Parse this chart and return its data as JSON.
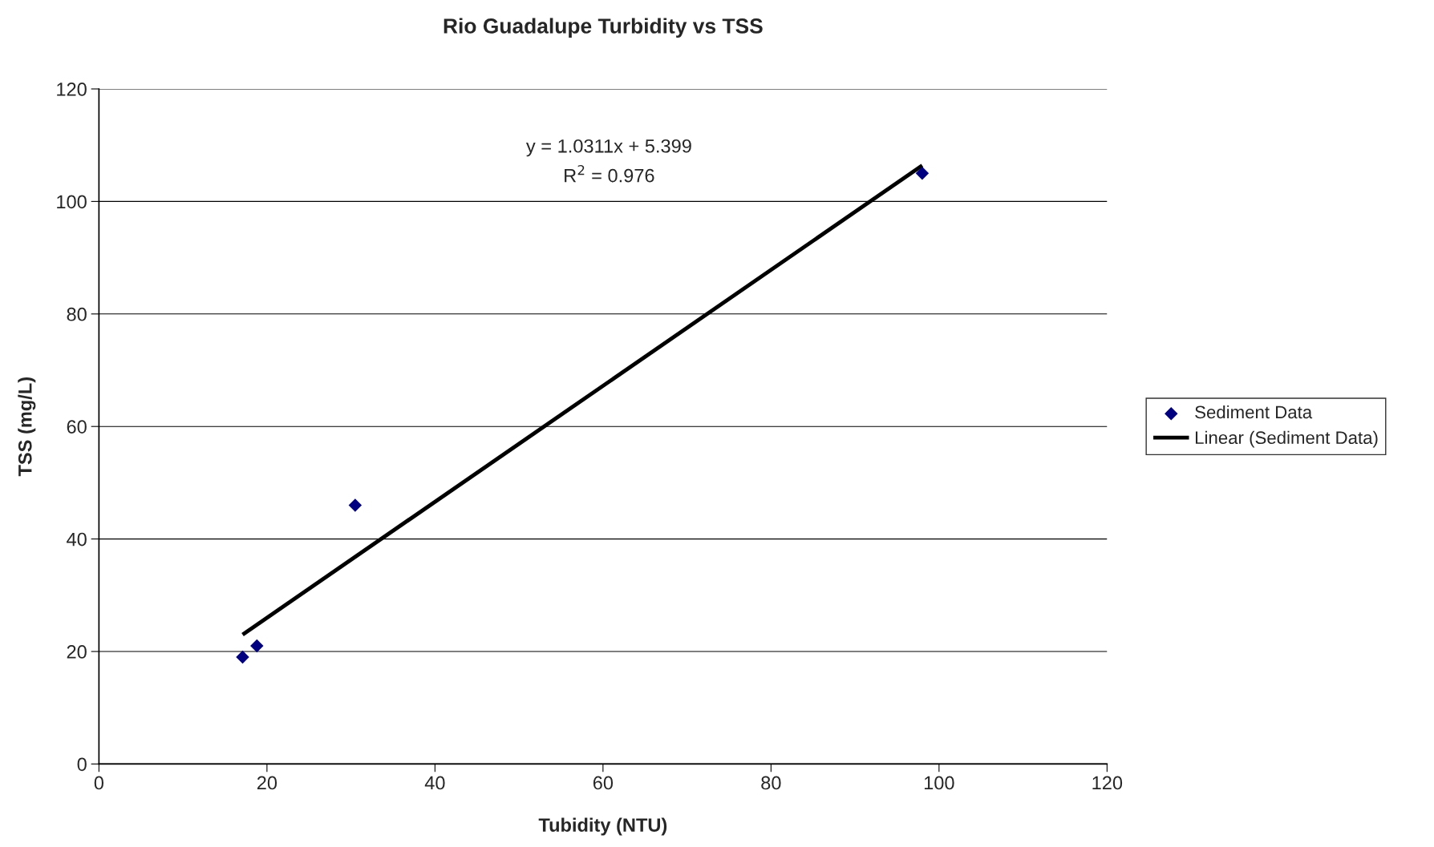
{
  "chart_data": {
    "type": "scatter",
    "title": "Rio Guadalupe Turbidity vs TSS",
    "xlabel": "Tubidity (NTU)",
    "ylabel": "TSS (mg/L)",
    "series": [
      {
        "name": "Sediment Data",
        "color": "#000080",
        "marker": "diamond",
        "x": [
          17.1,
          18.8,
          30.5,
          98
        ],
        "values": [
          19,
          21,
          46,
          105
        ]
      },
      {
        "name": "Linear (Sediment Data)",
        "type": "line",
        "color": "#000000",
        "line_style": "solid",
        "x": [
          17.1,
          98
        ],
        "values": [
          23.0,
          106.4
        ]
      }
    ],
    "annotations": [
      "y = 1.0311x + 5.399",
      "R$^{2}$ = 0.976"
    ],
    "xlim": [
      0,
      120
    ],
    "xticks": [
      0,
      20,
      40,
      60,
      80,
      100,
      120
    ],
    "ylim": [
      0,
      120
    ],
    "yticks": [
      0,
      20,
      40,
      60,
      80,
      100,
      120
    ],
    "grid": "y",
    "legend": "right"
  }
}
